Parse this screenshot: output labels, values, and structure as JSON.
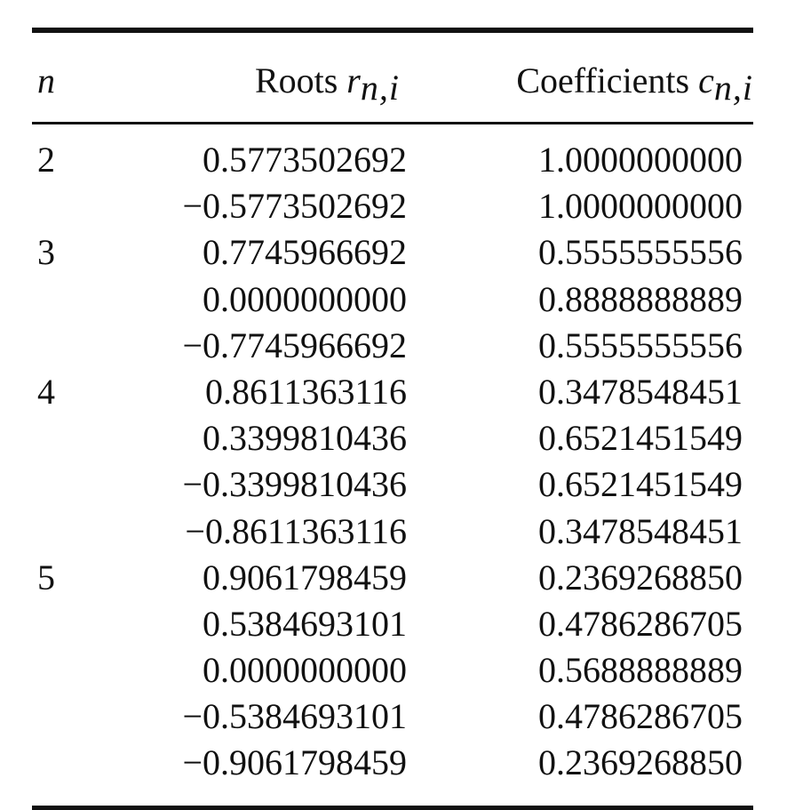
{
  "table": {
    "headers": {
      "n": "n",
      "roots_label": "Roots",
      "roots_symbol": "r",
      "roots_subscript": "n,i",
      "coef_label": "Coefficients",
      "coef_symbol": "c",
      "coef_subscript": "n,i"
    },
    "rows": [
      {
        "n": "2",
        "root": "0.5773502692",
        "coef": "1.0000000000"
      },
      {
        "n": "",
        "root": "−0.5773502692",
        "coef": "1.0000000000"
      },
      {
        "n": "3",
        "root": "0.7745966692",
        "coef": "0.5555555556"
      },
      {
        "n": "",
        "root": "0.0000000000",
        "coef": "0.8888888889"
      },
      {
        "n": "",
        "root": "−0.7745966692",
        "coef": "0.5555555556"
      },
      {
        "n": "4",
        "root": "0.8611363116",
        "coef": "0.3478548451"
      },
      {
        "n": "",
        "root": "0.3399810436",
        "coef": "0.6521451549"
      },
      {
        "n": "",
        "root": "−0.3399810436",
        "coef": "0.6521451549"
      },
      {
        "n": "",
        "root": "−0.8611363116",
        "coef": "0.3478548451"
      },
      {
        "n": "5",
        "root": "0.9061798459",
        "coef": "0.2369268850"
      },
      {
        "n": "",
        "root": "0.5384693101",
        "coef": "0.4786286705"
      },
      {
        "n": "",
        "root": "0.0000000000",
        "coef": "0.5688888889"
      },
      {
        "n": "",
        "root": "−0.5384693101",
        "coef": "0.4786286705"
      },
      {
        "n": "",
        "root": "−0.9061798459",
        "coef": "0.2369268850"
      }
    ]
  }
}
